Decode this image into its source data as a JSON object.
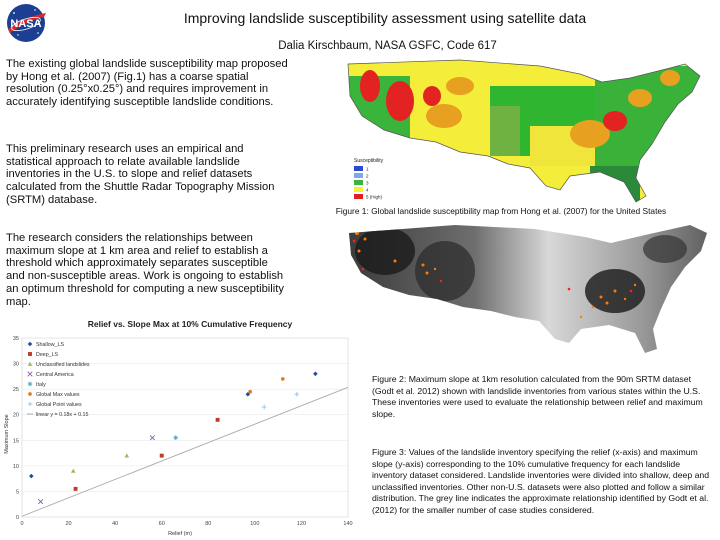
{
  "header": {
    "logo_text": "NASA",
    "title": "Improving landslide susceptibility assessment using satellite data",
    "author": "Dalia Kirschbaum, NASA GSFC, Code 617"
  },
  "body": {
    "para1": "The existing global landslide susceptibility map proposed by Hong et al. (2007) (Fig.1) has a coarse spatial resolution (0.25°x0.25°) and requires improvement in accurately identifying susceptible landslide conditions.",
    "para2": "This preliminary research uses an empirical and statistical approach to relate available landslide inventories in the U.S. to slope and relief datasets calculated from the Shuttle Radar Topography Mission (SRTM) database.",
    "para3": "The research considers the relationships between maximum slope at 1 km area and relief to establish a threshold which approximately separates susceptible and non-susceptible areas. Work is ongoing to establish an optimum threshold for computing a new susceptibility map."
  },
  "figure1": {
    "legend_title": "Susceptibility",
    "legend_items": [
      "1",
      "2",
      "3",
      "4",
      "5 (High)"
    ],
    "legend_colors": [
      "#2a4bd0",
      "#7fa8e6",
      "#3bb43b",
      "#f2f232",
      "#e02020"
    ],
    "caption": "Figure 1: Global landslide susceptibility map from Hong et al. (2007) for the United States"
  },
  "figure2": {
    "caption": "Figure 2: Maximum slope at 1km resolution calculated from the 90m SRTM dataset (Godt et al. 2012) shown with landslide inventories from various states within the U.S. These inventories were used to evaluate the relationship between relief and maximum slope."
  },
  "figure3": {
    "caption": "Figure 3: Values of the landslide inventory specifying the relief (x-axis) and maximum slope (y-axis) corresponding to the 10% cumulative frequency for each landslide inventory dataset considered. Landslide inventories were divided into shallow, deep and unclassified inventories. Other non-U.S. datasets were also plotted and follow a similar distribution. The grey line indicates the approximate relationship identified by Godt et al. (2012) for the smaller number of case studies considered."
  },
  "chart_data": {
    "type": "scatter",
    "title": "Relief vs. Slope Max at 10% Cumulative Frequency",
    "xlabel": "Relief (m)",
    "ylabel": "Maximum Slope",
    "xlim": [
      0,
      140
    ],
    "ylim": [
      0,
      35
    ],
    "xticks": [
      0,
      20,
      40,
      60,
      80,
      100,
      120,
      140
    ],
    "yticks": [
      0,
      5,
      10,
      15,
      20,
      25,
      30,
      35
    ],
    "series": [
      {
        "name": "Shallow_LS",
        "color": "#1f4e9c",
        "marker": "diamond",
        "points": [
          [
            4,
            8
          ],
          [
            97,
            24
          ],
          [
            126,
            28
          ]
        ]
      },
      {
        "name": "Deep_LS",
        "color": "#c0392b",
        "marker": "square",
        "points": [
          [
            23,
            5.5
          ],
          [
            60,
            12
          ],
          [
            84,
            19
          ]
        ]
      },
      {
        "name": "Unclassified landslides",
        "color": "#9bbb59",
        "marker": "triangle",
        "points": [
          [
            22,
            9
          ],
          [
            45,
            12
          ]
        ]
      },
      {
        "name": "Central America",
        "color": "#7f5fa8",
        "marker": "x",
        "points": [
          [
            8,
            3
          ],
          [
            56,
            15.5
          ]
        ]
      },
      {
        "name": "Italy",
        "color": "#4bacc6",
        "marker": "star",
        "points": [
          [
            66,
            15.5
          ]
        ]
      },
      {
        "name": "Global Max values",
        "color": "#e07b22",
        "marker": "circle",
        "points": [
          [
            98,
            24.5
          ],
          [
            112,
            27
          ]
        ]
      },
      {
        "name": "Global Point values",
        "color": "#9dc3e6",
        "marker": "plus",
        "points": [
          [
            104,
            21.5
          ],
          [
            118,
            24
          ]
        ]
      }
    ],
    "trendline": {
      "name": "linear y = 0.18x + 0.15",
      "label": "linear y = 0.18x + 0.15",
      "slope": 0.18,
      "intercept": 0.15,
      "color": "#aaaaaa"
    }
  }
}
